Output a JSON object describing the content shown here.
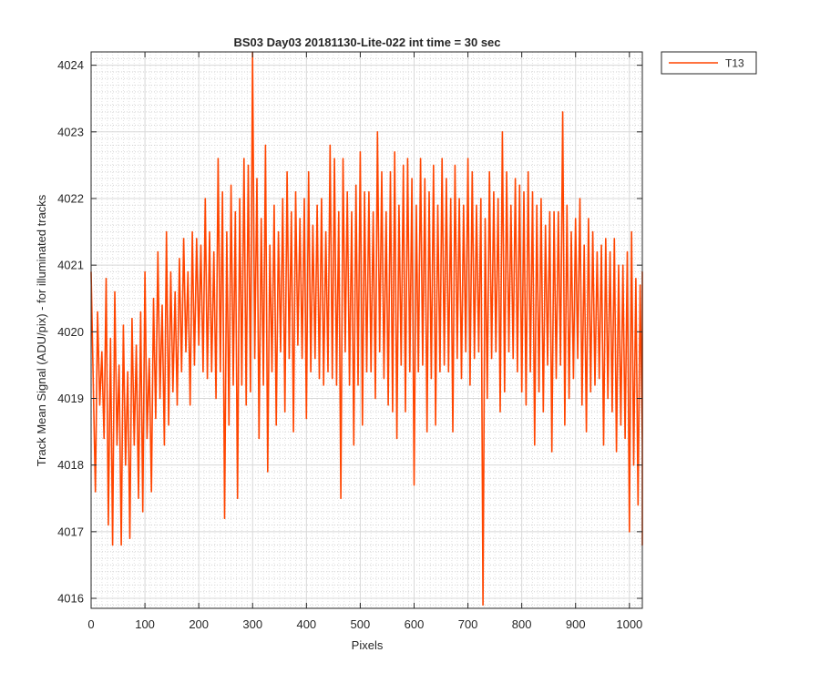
{
  "chart_data": {
    "type": "line",
    "title": "BS03 Day03 20181130-Lite-022 int time = 30 sec",
    "xlabel": "Pixels",
    "ylabel": "Track Mean Signal (ADU/pix) - for illuminated tracks",
    "xlim": [
      0,
      1024
    ],
    "ylim": [
      4015.85,
      4024.2
    ],
    "x_ticks": [
      0,
      100,
      200,
      300,
      400,
      500,
      600,
      700,
      800,
      900,
      1000
    ],
    "y_ticks": [
      4016,
      4017,
      4018,
      4019,
      4020,
      4021,
      4022,
      4023,
      4024
    ],
    "grid": "on",
    "minor_grid": "on",
    "legend_position": "outside-top-right",
    "series": [
      {
        "name": "T13",
        "color": "#ff4500",
        "x_start": 0,
        "x_step": 4,
        "y": [
          4020.9,
          4019.2,
          4017.6,
          4020.3,
          4018.9,
          4019.7,
          4018.4,
          4020.8,
          4017.1,
          4019.9,
          4016.8,
          4020.6,
          4018.3,
          4019.5,
          4016.8,
          4020.1,
          4018.0,
          4019.4,
          4016.9,
          4020.2,
          4018.3,
          4019.8,
          4017.5,
          4020.3,
          4017.3,
          4020.9,
          4018.4,
          4019.6,
          4017.6,
          4020.5,
          4018.7,
          4021.2,
          4019.0,
          4020.4,
          4018.3,
          4021.5,
          4018.6,
          4020.9,
          4019.1,
          4020.6,
          4018.9,
          4021.1,
          4019.4,
          4021.4,
          4019.7,
          4020.9,
          4018.9,
          4021.5,
          4019.5,
          4021.4,
          4019.8,
          4021.3,
          4019.4,
          4022.0,
          4019.3,
          4021.5,
          4019.4,
          4021.2,
          4019.0,
          4022.6,
          4019.4,
          4022.1,
          4017.2,
          4021.5,
          4018.6,
          4022.2,
          4019.2,
          4021.8,
          4017.5,
          4022.0,
          4019.2,
          4022.6,
          4018.9,
          4022.5,
          4019.1,
          4024.2,
          4019.6,
          4022.3,
          4018.4,
          4021.7,
          4019.2,
          4022.8,
          4017.9,
          4021.3,
          4019.4,
          4021.9,
          4018.6,
          4021.5,
          4019.7,
          4022.0,
          4018.8,
          4022.4,
          4019.6,
          4021.8,
          4018.5,
          4022.1,
          4019.8,
          4021.7,
          4019.6,
          4022.0,
          4018.7,
          4022.4,
          4019.4,
          4021.6,
          4019.6,
          4021.9,
          4019.3,
          4022.0,
          4019.2,
          4021.5,
          4019.4,
          4022.8,
          4019.3,
          4022.6,
          4019.2,
          4021.8,
          4017.5,
          4022.6,
          4019.7,
          4022.1,
          4019.2,
          4021.8,
          4018.3,
          4022.2,
          4019.2,
          4022.7,
          4018.6,
          4022.1,
          4019.4,
          4022.1,
          4019.4,
          4021.8,
          4019.0,
          4023.0,
          4019.7,
          4022.4,
          4019.3,
          4021.8,
          4018.9,
          4022.4,
          4018.8,
          4022.7,
          4018.4,
          4021.9,
          4019.5,
          4022.5,
          4018.8,
          4022.6,
          4019.4,
          4022.3,
          4017.7,
          4021.9,
          4019.4,
          4022.6,
          4019.5,
          4022.3,
          4018.5,
          4022.1,
          4019.3,
          4022.5,
          4018.6,
          4021.9,
          4019.4,
          4022.6,
          4019.5,
          4022.3,
          4019.4,
          4022.0,
          4018.5,
          4022.5,
          4019.6,
          4022.0,
          4019.3,
          4021.9,
          4019.7,
          4022.6,
          4019.2,
          4022.4,
          4019.6,
          4021.9,
          4019.7,
          4022.0,
          4015.9,
          4021.7,
          4019.0,
          4022.4,
          4019.6,
          4022.1,
          4019.7,
          4022.0,
          4018.8,
          4023.0,
          4019.1,
          4022.4,
          4019.7,
          4021.9,
          4019.6,
          4022.3,
          4019.4,
          4022.2,
          4019.1,
          4022.1,
          4018.9,
          4022.4,
          4019.4,
          4022.1,
          4018.3,
          4021.9,
          4019.1,
          4022.0,
          4018.8,
          4021.6,
          4019.5,
          4021.8,
          4018.2,
          4021.8,
          4019.3,
          4021.8,
          4019.5,
          4023.3,
          4018.6,
          4021.9,
          4019.0,
          4021.5,
          4019.3,
          4021.7,
          4019.6,
          4022.0,
          4018.9,
          4021.3,
          4018.5,
          4021.7,
          4019.1,
          4021.5,
          4019.2,
          4021.2,
          4019.3,
          4021.3,
          4018.3,
          4021.4,
          4019.0,
          4021.2,
          4018.8,
          4021.4,
          4018.2,
          4021.0,
          4018.6,
          4021.0,
          4018.4,
          4021.2,
          4017.0,
          4021.5,
          4018.0,
          4020.8,
          4017.4,
          4020.7,
          4018.3,
          4020.9,
          4016.8,
          4020.6,
          4017.2
        ]
      }
    ]
  }
}
